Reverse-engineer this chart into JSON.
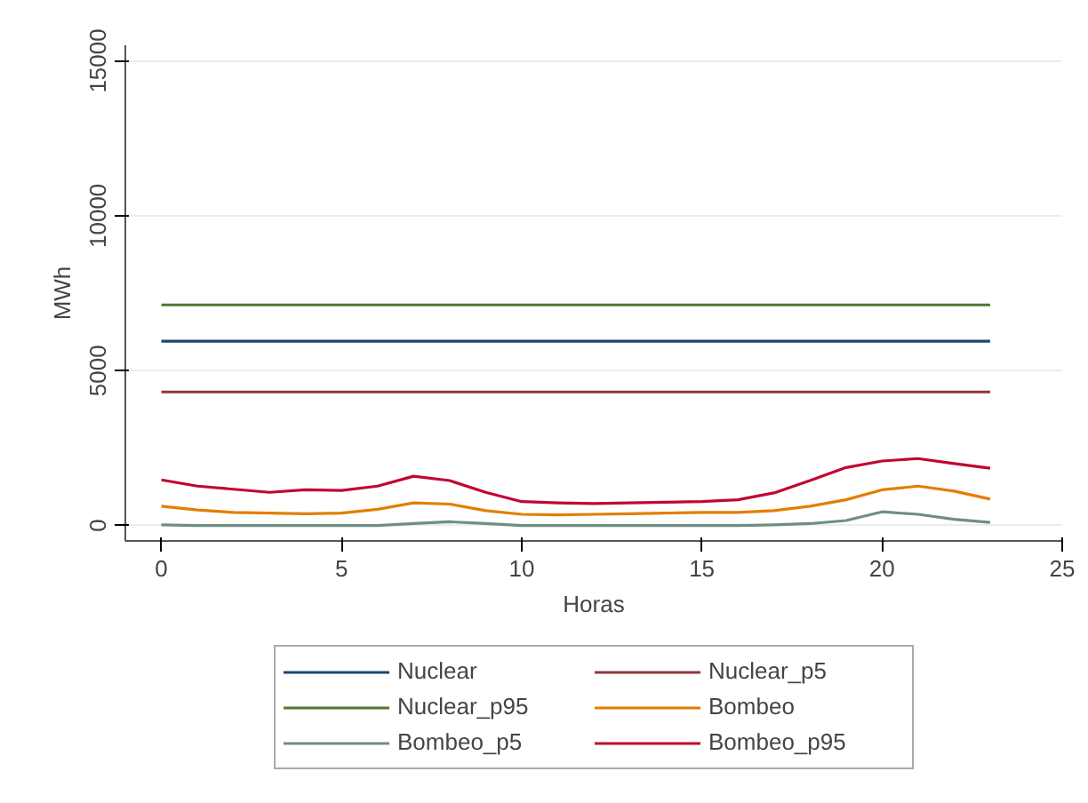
{
  "chart_data": {
    "type": "line",
    "xlabel": "Horas",
    "ylabel": "MWh",
    "x": [
      0,
      1,
      2,
      3,
      4,
      5,
      6,
      7,
      8,
      9,
      10,
      11,
      12,
      13,
      14,
      15,
      16,
      17,
      18,
      19,
      20,
      21,
      22,
      23
    ],
    "xlim": [
      -1,
      25
    ],
    "xticks": [
      0,
      5,
      10,
      15,
      20,
      25
    ],
    "ylim": [
      -500,
      15500
    ],
    "yticks": [
      0,
      5000,
      10000,
      15000
    ],
    "grid": "y",
    "legend": "bottom",
    "line_style": "solid",
    "marker": "none",
    "series": [
      {
        "name": "Nuclear",
        "color": "#1a476f",
        "values": [
          5950,
          5950,
          5950,
          5950,
          5950,
          5950,
          5950,
          5950,
          5950,
          5950,
          5950,
          5950,
          5950,
          5950,
          5950,
          5950,
          5950,
          5950,
          5950,
          5950,
          5950,
          5950,
          5950,
          5950
        ]
      },
      {
        "name": "Nuclear_p5",
        "color": "#90353b",
        "values": [
          4310,
          4310,
          4310,
          4310,
          4310,
          4310,
          4310,
          4310,
          4310,
          4310,
          4310,
          4310,
          4310,
          4310,
          4310,
          4310,
          4310,
          4310,
          4310,
          4310,
          4310,
          4310,
          4310,
          4310
        ]
      },
      {
        "name": "Nuclear_p95",
        "color": "#55752f",
        "values": [
          7120,
          7120,
          7120,
          7120,
          7120,
          7120,
          7120,
          7120,
          7120,
          7120,
          7120,
          7120,
          7120,
          7120,
          7120,
          7120,
          7120,
          7120,
          7120,
          7120,
          7120,
          7120,
          7120,
          7120
        ]
      },
      {
        "name": "Bombeo",
        "color": "#e37e00",
        "values": [
          620,
          500,
          420,
          400,
          380,
          400,
          520,
          730,
          690,
          480,
          360,
          340,
          360,
          380,
          400,
          420,
          420,
          480,
          620,
          830,
          1150,
          1270,
          1110,
          850
        ]
      },
      {
        "name": "Bombeo_p5",
        "color": "#6e8e84",
        "values": [
          20,
          0,
          0,
          0,
          0,
          0,
          0,
          60,
          120,
          60,
          0,
          0,
          0,
          0,
          0,
          0,
          0,
          20,
          60,
          160,
          440,
          360,
          200,
          100
        ]
      },
      {
        "name": "Bombeo_p95",
        "color": "#c10534",
        "values": [
          1470,
          1270,
          1170,
          1070,
          1150,
          1130,
          1270,
          1590,
          1450,
          1070,
          770,
          730,
          710,
          730,
          750,
          770,
          830,
          1050,
          1450,
          1870,
          2080,
          2160,
          2000,
          1850
        ]
      }
    ]
  }
}
